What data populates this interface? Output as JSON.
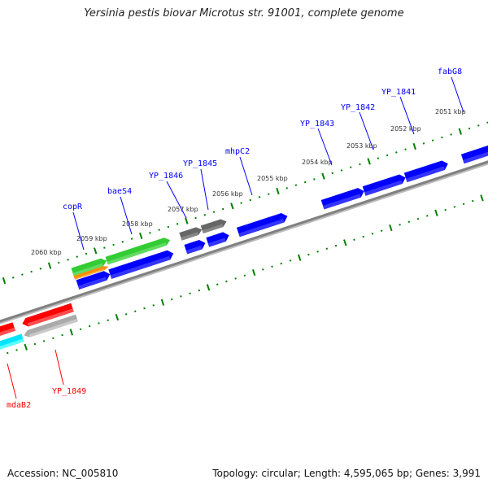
{
  "title": "Yersinia pestis biovar Microtus str. 91001, complete genome",
  "footer": {
    "accession": "Accession: NC_005810",
    "topology": "Topology: circular; Length: 4,595,065 bp; Genes: 3,991"
  },
  "colors": {
    "backbone": "#808080",
    "tick": "#008000",
    "label_forward": "#0000ff",
    "label_reverse": "#ff0000",
    "blue": "#0000ff",
    "green": "#33cc33",
    "orange": "#ff8c00",
    "gray": "#666666",
    "red": "#ff0000",
    "lightgray": "#aaaaaa",
    "cyan": "#00ffff"
  },
  "kbp_labels": [
    "2060 kbp",
    "2059 kbp",
    "2058 kbp",
    "2057 kbp",
    "2056 kbp",
    "2055 kbp",
    "2054 kbp",
    "2053 kbp",
    "2052 kbp",
    "2051 kbp"
  ],
  "gene_labels": [
    "copR",
    "baeS4",
    "YP_1846",
    "YP_1845",
    "mhpC2",
    "YP_1843",
    "YP_1842",
    "YP_1841",
    "fabG8",
    "mdaB2",
    "YP_1849"
  ],
  "features": [
    {
      "strand": "+",
      "track": 0,
      "color": "blue",
      "start": 2059.57,
      "end": 2058.86
    },
    {
      "strand": "+",
      "track": 0,
      "color": "blue",
      "start": 2058.86,
      "end": 2057.47
    },
    {
      "strand": "+",
      "track": 0,
      "color": "blue",
      "start": 2057.2,
      "end": 2056.77
    },
    {
      "strand": "+",
      "track": 0,
      "color": "blue",
      "start": 2056.72,
      "end": 2056.25
    },
    {
      "strand": "+",
      "track": 0,
      "color": "blue",
      "start": 2056.05,
      "end": 2054.97
    },
    {
      "strand": "+",
      "track": 0,
      "color": "blue",
      "start": 2054.2,
      "end": 2053.29
    },
    {
      "strand": "+",
      "track": 0,
      "color": "blue",
      "start": 2053.29,
      "end": 2052.38
    },
    {
      "strand": "+",
      "track": 0,
      "color": "blue",
      "start": 2052.38,
      "end": 2051.45
    },
    {
      "strand": "+",
      "track": 0,
      "color": "blue",
      "start": 2051.13,
      "end": 2050.4
    },
    {
      "strand": "+",
      "track": 1,
      "color": "green",
      "start": 2059.59,
      "end": 2058.84
    },
    {
      "strand": "+",
      "track": 1,
      "color": "green",
      "start": 2058.84,
      "end": 2057.45
    },
    {
      "strand": "+",
      "track": 2,
      "color": "orange",
      "start": 2059.59,
      "end": 2058.84
    },
    {
      "strand": "+",
      "track": 1,
      "color": "gray",
      "start": 2057.22,
      "end": 2056.75
    },
    {
      "strand": "+",
      "track": 1,
      "color": "gray",
      "start": 2056.75,
      "end": 2056.21
    },
    {
      "strand": "-",
      "track": 0,
      "color": "red",
      "start": 2061.7,
      "end": 2061.1
    },
    {
      "strand": "-",
      "track": 0,
      "color": "red",
      "start": 2060.92,
      "end": 2059.82
    },
    {
      "strand": "-",
      "track": 1,
      "color": "lightgray",
      "start": 2060.96,
      "end": 2059.8
    },
    {
      "strand": "-",
      "track": 2,
      "color": "cyan",
      "start": 2061.7,
      "end": 2061.0
    }
  ],
  "axis": {
    "kbp_min": 2050,
    "kbp_max": 2062,
    "major_step": 1,
    "minor_step": 0.2
  }
}
